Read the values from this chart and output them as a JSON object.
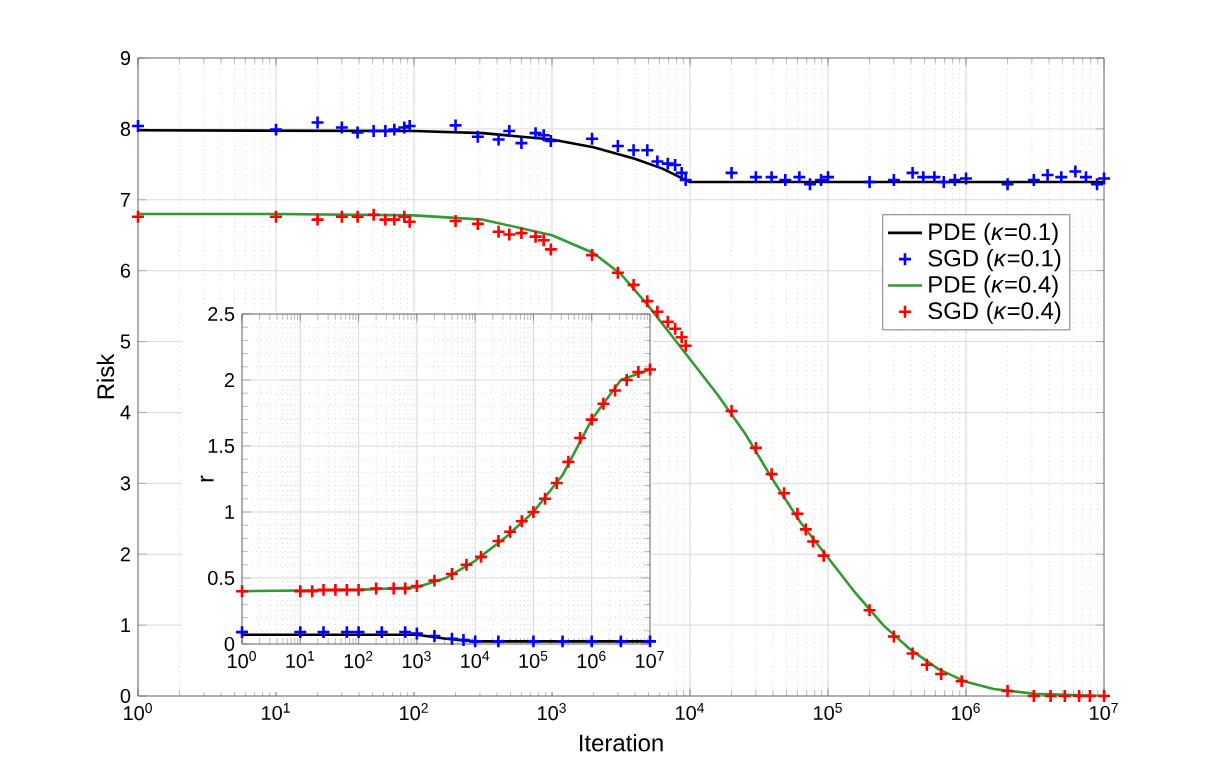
{
  "chart_data": [
    {
      "type": "line",
      "xlabel": "Iteration",
      "ylabel": "Risk",
      "log": "x",
      "grid": true,
      "legend": "right",
      "xlim": [
        1,
        10000000
      ],
      "ylim": [
        0,
        9
      ],
      "xticks": [
        {
          "value": 1,
          "label": "10$^{0}$"
        },
        {
          "value": 10,
          "label": "10$^{1}$"
        },
        {
          "value": 100,
          "label": "10$^{2}$"
        },
        {
          "value": 1000,
          "label": "10$^{3}$"
        },
        {
          "value": 10000,
          "label": "10$^{4}$"
        },
        {
          "value": 100000,
          "label": "10$^{5}$"
        },
        {
          "value": 1000000,
          "label": "10$^{6}$"
        },
        {
          "value": 10000000,
          "label": "10$^{7}$"
        }
      ],
      "yticks": [
        0,
        1,
        2,
        3,
        4,
        5,
        6,
        7,
        8,
        9
      ],
      "series": [
        {
          "name": "PDE (*κ*=0.1)",
          "type": "line",
          "color": "#000000",
          "x": [
            1,
            100,
            316,
            1000,
            1995,
            3981,
            6310,
            10000,
            100000,
            10000000
          ],
          "values": [
            7.98,
            7.97,
            7.94,
            7.85,
            7.74,
            7.58,
            7.44,
            7.25,
            7.25,
            7.25
          ]
        },
        {
          "name": "SGD (*κ*=0.1)",
          "type": "scatter",
          "marker": "cross",
          "color": "#0000ff",
          "x": [
            1,
            10,
            20,
            30,
            39,
            51,
            62,
            72,
            85,
            93,
            200,
            290,
            410,
            490,
            600,
            760,
            870,
            980,
            1950,
            3000,
            3900,
            4900,
            5800,
            6900,
            7800,
            8700,
            9300,
            20000,
            30000,
            39000,
            49000,
            62000,
            74000,
            89000,
            100000,
            200000,
            300000,
            410000,
            490000,
            590000,
            690000,
            830000,
            1000000,
            2000000,
            3100000,
            3900000,
            4900000,
            6200000,
            7400000,
            8900000,
            10000000
          ],
          "values": [
            8.04,
            7.99,
            8.09,
            8.02,
            7.95,
            7.97,
            7.97,
            7.99,
            8.02,
            8.04,
            8.05,
            7.89,
            7.85,
            7.97,
            7.8,
            7.94,
            7.91,
            7.83,
            7.86,
            7.76,
            7.7,
            7.7,
            7.54,
            7.51,
            7.49,
            7.38,
            7.28,
            7.38,
            7.32,
            7.32,
            7.28,
            7.32,
            7.22,
            7.28,
            7.32,
            7.25,
            7.28,
            7.38,
            7.32,
            7.32,
            7.25,
            7.28,
            7.3,
            7.22,
            7.28,
            7.35,
            7.32,
            7.4,
            7.32,
            7.22,
            7.3
          ]
        },
        {
          "name": "PDE (*κ*=0.4)",
          "type": "line",
          "color": "#339933",
          "x": [
            1,
            10,
            100,
            316,
            1000,
            1995,
            3162,
            5012,
            7943,
            10000,
            15849,
            25119,
            39811,
            63096,
            100000,
            158489,
            251189,
            398107,
            630957,
            1000000,
            1584893,
            3162278,
            10000000
          ],
          "values": [
            6.8,
            6.8,
            6.78,
            6.72,
            6.5,
            6.25,
            5.95,
            5.5,
            5.0,
            4.75,
            4.25,
            3.7,
            3.05,
            2.45,
            1.95,
            1.45,
            1.0,
            0.65,
            0.38,
            0.2,
            0.1,
            0.03,
            0.0
          ]
        },
        {
          "name": "SGD (*κ*=0.4)",
          "type": "scatter",
          "marker": "cross",
          "color": "#ff0000",
          "x": [
            1,
            10,
            20,
            30,
            39,
            51,
            62,
            72,
            85,
            93,
            200,
            290,
            410,
            490,
            600,
            760,
            870,
            980,
            1950,
            3000,
            3900,
            4900,
            5800,
            6900,
            7800,
            8700,
            9300,
            20000,
            30000,
            39000,
            48000,
            60000,
            69000,
            78000,
            93000,
            200000,
            300000,
            410000,
            520000,
            660000,
            930000,
            2000000,
            3100000,
            4100000,
            5200000,
            6600000,
            7900000,
            10000000
          ],
          "values": [
            6.76,
            6.76,
            6.72,
            6.76,
            6.76,
            6.79,
            6.72,
            6.72,
            6.76,
            6.69,
            6.7,
            6.66,
            6.55,
            6.51,
            6.53,
            6.48,
            6.43,
            6.3,
            6.22,
            5.97,
            5.8,
            5.57,
            5.42,
            5.28,
            5.18,
            5.06,
            4.94,
            4.02,
            3.5,
            3.13,
            2.86,
            2.57,
            2.35,
            2.18,
            1.98,
            1.21,
            0.84,
            0.6,
            0.44,
            0.31,
            0.21,
            0.07,
            0,
            0,
            0,
            0,
            0,
            0
          ]
        }
      ]
    },
    {
      "type": "line",
      "ylabel": "r",
      "log": "x",
      "grid": true,
      "xlim": [
        1,
        10000000
      ],
      "ylim": [
        0,
        2.5
      ],
      "xticks": [
        {
          "value": 1,
          "label": "10$^{0}$"
        },
        {
          "value": 10,
          "label": "10$^{1}$"
        },
        {
          "value": 100,
          "label": "10$^{2}$"
        },
        {
          "value": 1000,
          "label": "10$^{3}$"
        },
        {
          "value": 10000,
          "label": "10$^{4}$"
        },
        {
          "value": 100000,
          "label": "10$^{5}$"
        },
        {
          "value": 1000000,
          "label": "10$^{6}$"
        },
        {
          "value": 10000000,
          "label": "10$^{7}$"
        }
      ],
      "yticks": [
        0,
        0.5,
        1,
        1.5,
        2,
        2.5
      ],
      "series": [
        {
          "type": "line",
          "color": "#000000",
          "x": [
            1,
            10,
            1000,
            3162,
            10000,
            10000000
          ],
          "values": [
            0.07,
            0.07,
            0.07,
            0.04,
            0.02,
            0.02
          ]
        },
        {
          "type": "scatter",
          "marker": "cross",
          "color": "#0000ff",
          "x": [
            1,
            10,
            25,
            63,
            100,
            250,
            630,
            1000,
            2000,
            4000,
            6300,
            10000,
            25000,
            100000,
            316000,
            1000000,
            3162000,
            10000000
          ],
          "values": [
            0.09,
            0.09,
            0.09,
            0.09,
            0.09,
            0.09,
            0.09,
            0.08,
            0.06,
            0.04,
            0.03,
            0.02,
            0.02,
            0.02,
            0.02,
            0.02,
            0.02,
            0.02
          ]
        },
        {
          "type": "line",
          "color": "#339933",
          "x": [
            1,
            100,
            1000,
            3162,
            10000,
            31623,
            100000,
            316228,
            1000000,
            3162278,
            10000000
          ],
          "values": [
            0.4,
            0.41,
            0.43,
            0.5,
            0.63,
            0.8,
            1.0,
            1.28,
            1.7,
            2.0,
            2.08
          ]
        },
        {
          "type": "scatter",
          "marker": "cross",
          "color": "#ff0000",
          "x": [
            1,
            10,
            16,
            25,
            40,
            63,
            100,
            200,
            400,
            630,
            1000,
            2000,
            4000,
            7100,
            12600,
            25100,
            39800,
            63100,
            100000,
            158000,
            251000,
            398000,
            631000,
            1000000,
            1585000,
            2512000,
            3981000,
            6310000,
            10000000
          ],
          "values": [
            0.4,
            0.4,
            0.4,
            0.41,
            0.41,
            0.41,
            0.41,
            0.42,
            0.42,
            0.42,
            0.44,
            0.48,
            0.53,
            0.6,
            0.66,
            0.78,
            0.85,
            0.93,
            1.0,
            1.1,
            1.22,
            1.38,
            1.56,
            1.7,
            1.82,
            1.92,
            2.0,
            2.06,
            2.08
          ]
        }
      ]
    }
  ]
}
